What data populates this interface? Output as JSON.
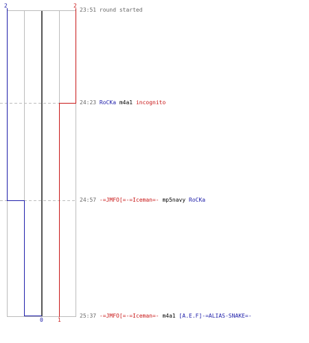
{
  "score": {
    "top": [
      {
        "team": "blue",
        "value": "2"
      },
      {
        "team": "red",
        "value": "2"
      }
    ],
    "bottom": [
      {
        "team": "blue",
        "value": "0"
      },
      {
        "team": "red",
        "value": "1"
      }
    ]
  },
  "colors": {
    "blue": "#1a1aa8",
    "red": "#c81414",
    "grid": "#bbbbbb",
    "center": "#555555",
    "dash": "#bbbbbb"
  },
  "events": [
    {
      "time": "23:51",
      "text": "round started"
    },
    {
      "time": "24:23",
      "killer": "RoCKa",
      "killer_team": "blue",
      "weapon": "m4a1",
      "victim": "incognito",
      "victim_team": "red"
    },
    {
      "time": "24:57",
      "killer": "-=JMFO[=-=Iceman=-",
      "killer_team": "red",
      "weapon": "mp5navy",
      "victim": "RoCKa",
      "victim_team": "blue"
    },
    {
      "time": "25:37",
      "killer": "-=JMFO[=-=Iceman=-",
      "killer_team": "red",
      "weapon": "m4a1",
      "victim": "[A.E.F]-=ALIAS-SNAKE=-",
      "victim_team": "blue"
    }
  ]
}
